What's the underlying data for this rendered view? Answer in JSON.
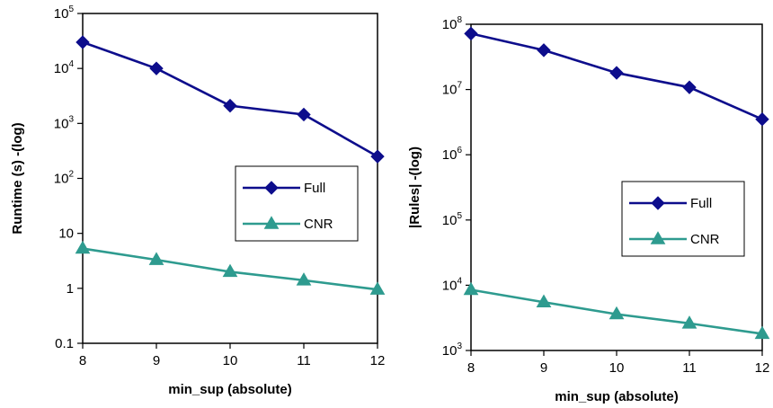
{
  "chart_data": [
    {
      "type": "line",
      "log_y": true,
      "xlabel": "min_sup (absolute)",
      "ylabel": "Runtime (s) -(log)",
      "x": [
        8,
        9,
        10,
        11,
        12
      ],
      "ylim": [
        0.1,
        100000
      ],
      "ytick_values": [
        0.1,
        1,
        10,
        100,
        1000,
        10000,
        100000
      ],
      "yticks": [
        {
          "base": "0.1",
          "exp": ""
        },
        {
          "base": "1",
          "exp": ""
        },
        {
          "base": "10",
          "exp": ""
        },
        {
          "base": "10",
          "exp": "2"
        },
        {
          "base": "10",
          "exp": "3"
        },
        {
          "base": "10",
          "exp": "4"
        },
        {
          "base": "10",
          "exp": "5"
        }
      ],
      "series": [
        {
          "name": "Full",
          "marker": "diamond",
          "color": "#0D0D8C",
          "values": [
            30000,
            10000,
            2100,
            1450,
            250
          ]
        },
        {
          "name": "CNR",
          "marker": "triangle",
          "color": "#2E9B8F",
          "values": [
            5.3,
            3.3,
            2.0,
            1.4,
            0.95
          ]
        }
      ],
      "grid": false,
      "legend_position": "center-right"
    },
    {
      "type": "line",
      "log_y": true,
      "xlabel": "min_sup (absolute)",
      "ylabel": "|Rules| -(log)",
      "x": [
        8,
        9,
        10,
        11,
        12
      ],
      "ylim": [
        1000,
        100000000
      ],
      "ytick_values": [
        1000,
        10000,
        100000,
        1000000,
        10000000,
        100000000
      ],
      "yticks": [
        {
          "base": "10",
          "exp": "3"
        },
        {
          "base": "10",
          "exp": "4"
        },
        {
          "base": "10",
          "exp": "5"
        },
        {
          "base": "10",
          "exp": "6"
        },
        {
          "base": "10",
          "exp": "7"
        },
        {
          "base": "10",
          "exp": "8"
        }
      ],
      "series": [
        {
          "name": "Full",
          "marker": "diamond",
          "color": "#0D0D8C",
          "values": [
            72000000,
            40000000,
            18000000,
            10800000,
            3500000
          ]
        },
        {
          "name": "CNR",
          "marker": "triangle",
          "color": "#2E9B8F",
          "values": [
            8500,
            5500,
            3600,
            2600,
            1800
          ]
        }
      ],
      "grid": false,
      "legend_position": "center-right"
    }
  ]
}
